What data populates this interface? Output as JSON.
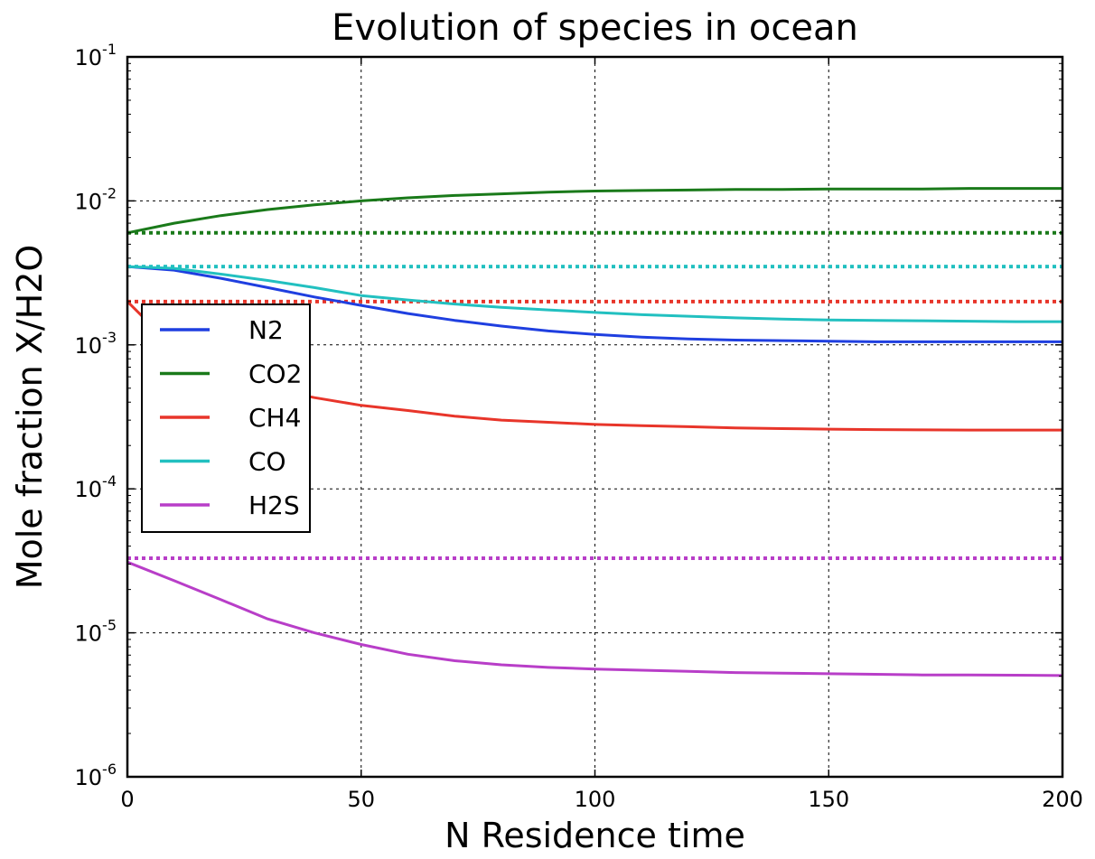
{
  "chart_data": {
    "type": "line",
    "title": "Evolution of species in ocean",
    "xlabel": "N Residence time",
    "ylabel": "Mole fraction X/H2O",
    "xlim": [
      0,
      200
    ],
    "ylim": [
      1e-06,
      0.1
    ],
    "yscale": "log",
    "grid": true,
    "legend_position": "center-left",
    "x_ticks": [
      {
        "value": 0,
        "label": "0"
      },
      {
        "value": 50,
        "label": "50"
      },
      {
        "value": 100,
        "label": "100"
      },
      {
        "value": 150,
        "label": "150"
      },
      {
        "value": 200,
        "label": "200"
      }
    ],
    "y_ticks": [
      {
        "value": 1e-06,
        "base": "10",
        "exp": "-6"
      },
      {
        "value": 1e-05,
        "base": "10",
        "exp": "-5"
      },
      {
        "value": 0.0001,
        "base": "10",
        "exp": "-4"
      },
      {
        "value": 0.001,
        "base": "10",
        "exp": "-3"
      },
      {
        "value": 0.01,
        "base": "10",
        "exp": "-2"
      },
      {
        "value": 0.1,
        "base": "10",
        "exp": "-1"
      }
    ],
    "x": [
      0,
      10,
      20,
      30,
      40,
      50,
      60,
      70,
      80,
      90,
      100,
      110,
      120,
      130,
      140,
      150,
      160,
      170,
      180,
      190,
      200
    ],
    "series": [
      {
        "name": "N2",
        "color": "#1f3fe0",
        "style": "solid",
        "values": [
          0.0035,
          0.0033,
          0.0029,
          0.0025,
          0.00215,
          0.00188,
          0.00165,
          0.00148,
          0.00135,
          0.00125,
          0.00118,
          0.00113,
          0.0011,
          0.00108,
          0.00107,
          0.00106,
          0.00105,
          0.00105,
          0.00105,
          0.00105,
          0.00105
        ]
      },
      {
        "name": "CO2",
        "color": "#1a7a1a",
        "style": "solid",
        "values": [
          0.006,
          0.007,
          0.0079,
          0.0087,
          0.0094,
          0.01,
          0.0105,
          0.0109,
          0.0112,
          0.0115,
          0.0117,
          0.0118,
          0.0119,
          0.012,
          0.012,
          0.0121,
          0.0121,
          0.0121,
          0.0122,
          0.0122,
          0.0122
        ]
      },
      {
        "name": "CH4",
        "color": "#e8352a",
        "style": "solid",
        "values": [
          0.002,
          0.00095,
          0.00065,
          0.0005,
          0.00043,
          0.00038,
          0.00035,
          0.00032,
          0.0003,
          0.00029,
          0.00028,
          0.000275,
          0.00027,
          0.000265,
          0.000262,
          0.00026,
          0.000258,
          0.000257,
          0.000256,
          0.000256,
          0.000256
        ]
      },
      {
        "name": "CO",
        "color": "#22c0c0",
        "style": "solid",
        "values": [
          0.0035,
          0.0034,
          0.0031,
          0.0028,
          0.0025,
          0.0022,
          0.00205,
          0.00192,
          0.00182,
          0.00175,
          0.00168,
          0.00162,
          0.00158,
          0.00154,
          0.00151,
          0.00149,
          0.00148,
          0.00147,
          0.00146,
          0.00145,
          0.00145
        ]
      },
      {
        "name": "H2S",
        "color": "#b83ec8",
        "style": "solid",
        "values": [
          3.1e-05,
          2.3e-05,
          1.7e-05,
          1.25e-05,
          1e-05,
          8.3e-06,
          7.1e-06,
          6.4e-06,
          6e-06,
          5.75e-06,
          5.6e-06,
          5.5e-06,
          5.4e-06,
          5.3e-06,
          5.25e-06,
          5.2e-06,
          5.15e-06,
          5.1e-06,
          5.1e-06,
          5.08e-06,
          5.05e-06
        ]
      }
    ],
    "reference_lines": [
      {
        "species": "CO2",
        "color": "#1a7a1a",
        "style": "dotted",
        "value": 0.006
      },
      {
        "species": "CO",
        "color": "#22c0c0",
        "style": "dotted",
        "value": 0.0035
      },
      {
        "species": "CH4",
        "color": "#e8352a",
        "style": "dotted",
        "value": 0.002
      },
      {
        "species": "H2S",
        "color": "#b83ec8",
        "style": "dotted",
        "value": 3.3e-05
      }
    ]
  }
}
